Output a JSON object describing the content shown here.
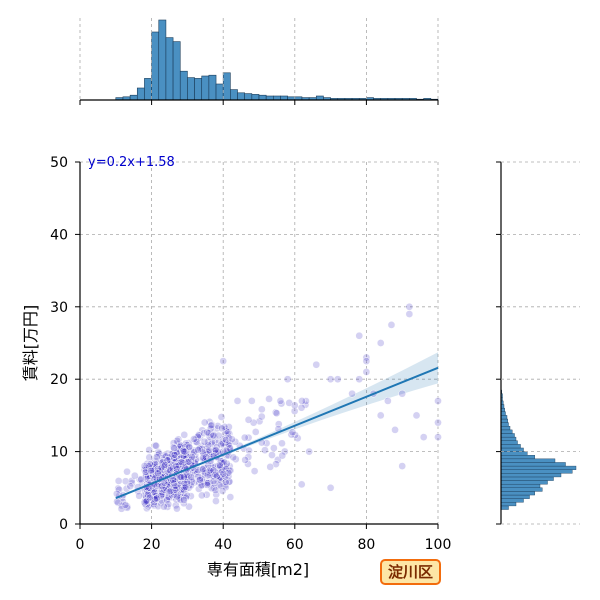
{
  "chart_data": {
    "type": "scatter",
    "title": "",
    "xlabel": "専有面積[m2]",
    "ylabel": "賃料[万円]",
    "xlim": [
      0,
      100
    ],
    "ylim": [
      0,
      50
    ],
    "x_ticks": [
      0,
      20,
      40,
      60,
      80,
      100
    ],
    "y_ticks": [
      0,
      10,
      20,
      30,
      40,
      50
    ],
    "grid": true,
    "equation": "y=0.2x+1.58",
    "regression": {
      "slope": 0.2,
      "intercept": 1.58,
      "x_range": [
        10,
        100
      ]
    },
    "point_color": "#3a2fc6",
    "line_color": "#1f77b4",
    "hist_color": "#4a90c2",
    "marginal_x_hist": {
      "bin_width": 2,
      "counts_relative": [
        {
          "x": 10,
          "h": 0.03
        },
        {
          "x": 12,
          "h": 0.04
        },
        {
          "x": 14,
          "h": 0.06
        },
        {
          "x": 16,
          "h": 0.15
        },
        {
          "x": 18,
          "h": 0.27
        },
        {
          "x": 20,
          "h": 0.85
        },
        {
          "x": 22,
          "h": 1.0
        },
        {
          "x": 24,
          "h": 0.78
        },
        {
          "x": 26,
          "h": 0.73
        },
        {
          "x": 28,
          "h": 0.36
        },
        {
          "x": 30,
          "h": 0.28
        },
        {
          "x": 32,
          "h": 0.27
        },
        {
          "x": 34,
          "h": 0.3
        },
        {
          "x": 36,
          "h": 0.31
        },
        {
          "x": 38,
          "h": 0.2
        },
        {
          "x": 40,
          "h": 0.34
        },
        {
          "x": 42,
          "h": 0.13
        },
        {
          "x": 44,
          "h": 0.09
        },
        {
          "x": 46,
          "h": 0.08
        },
        {
          "x": 48,
          "h": 0.07
        },
        {
          "x": 50,
          "h": 0.06
        },
        {
          "x": 52,
          "h": 0.05
        },
        {
          "x": 54,
          "h": 0.05
        },
        {
          "x": 56,
          "h": 0.05
        },
        {
          "x": 58,
          "h": 0.04
        },
        {
          "x": 60,
          "h": 0.04
        },
        {
          "x": 62,
          "h": 0.03
        },
        {
          "x": 64,
          "h": 0.03
        },
        {
          "x": 66,
          "h": 0.05
        },
        {
          "x": 68,
          "h": 0.03
        },
        {
          "x": 70,
          "h": 0.02
        },
        {
          "x": 72,
          "h": 0.02
        },
        {
          "x": 74,
          "h": 0.02
        },
        {
          "x": 76,
          "h": 0.02
        },
        {
          "x": 78,
          "h": 0.02
        },
        {
          "x": 80,
          "h": 0.03
        },
        {
          "x": 82,
          "h": 0.02
        },
        {
          "x": 84,
          "h": 0.02
        },
        {
          "x": 86,
          "h": 0.02
        },
        {
          "x": 88,
          "h": 0.02
        },
        {
          "x": 90,
          "h": 0.02
        },
        {
          "x": 92,
          "h": 0.02
        },
        {
          "x": 94,
          "h": 0.01
        },
        {
          "x": 96,
          "h": 0.02
        },
        {
          "x": 98,
          "h": 0.01
        }
      ]
    },
    "marginal_y_hist": {
      "bin_width": 0.5,
      "counts_relative": [
        {
          "y": 2.0,
          "w": 0.1
        },
        {
          "y": 2.5,
          "w": 0.2
        },
        {
          "y": 3.0,
          "w": 0.3
        },
        {
          "y": 3.5,
          "w": 0.38
        },
        {
          "y": 4.0,
          "w": 0.45
        },
        {
          "y": 4.5,
          "w": 0.55
        },
        {
          "y": 5.0,
          "w": 0.52
        },
        {
          "y": 5.5,
          "w": 0.62
        },
        {
          "y": 6.0,
          "w": 0.7
        },
        {
          "y": 6.5,
          "w": 0.8
        },
        {
          "y": 7.0,
          "w": 0.95
        },
        {
          "y": 7.5,
          "w": 1.0
        },
        {
          "y": 8.0,
          "w": 0.86
        },
        {
          "y": 8.5,
          "w": 0.72
        },
        {
          "y": 9.0,
          "w": 0.45
        },
        {
          "y": 9.5,
          "w": 0.35
        },
        {
          "y": 10.0,
          "w": 0.3
        },
        {
          "y": 10.5,
          "w": 0.26
        },
        {
          "y": 11.0,
          "w": 0.22
        },
        {
          "y": 11.5,
          "w": 0.2
        },
        {
          "y": 12.0,
          "w": 0.18
        },
        {
          "y": 12.5,
          "w": 0.15
        },
        {
          "y": 13.0,
          "w": 0.12
        },
        {
          "y": 13.5,
          "w": 0.1
        },
        {
          "y": 14.0,
          "w": 0.09
        },
        {
          "y": 14.5,
          "w": 0.08
        },
        {
          "y": 15.0,
          "w": 0.06
        },
        {
          "y": 15.5,
          "w": 0.05
        },
        {
          "y": 16.0,
          "w": 0.04
        },
        {
          "y": 16.5,
          "w": 0.03
        },
        {
          "y": 17.0,
          "w": 0.02
        },
        {
          "y": 17.5,
          "w": 0.02
        },
        {
          "y": 18.0,
          "w": 0.01
        }
      ]
    },
    "outlier_points": [
      [
        92,
        30
      ],
      [
        92,
        29
      ],
      [
        87,
        27.5
      ],
      [
        78,
        26
      ],
      [
        84,
        25
      ],
      [
        80,
        23
      ],
      [
        80,
        22.5
      ],
      [
        80,
        21
      ],
      [
        66,
        22
      ],
      [
        70,
        20
      ],
      [
        72,
        20
      ],
      [
        78,
        20
      ],
      [
        82,
        18
      ],
      [
        90,
        18
      ],
      [
        86,
        17
      ],
      [
        76,
        18
      ],
      [
        100,
        17
      ],
      [
        100,
        14
      ],
      [
        100,
        12
      ],
      [
        96,
        12
      ],
      [
        94,
        15
      ],
      [
        88,
        13
      ],
      [
        84,
        15
      ],
      [
        58,
        20
      ],
      [
        62,
        17
      ],
      [
        56,
        17
      ],
      [
        48,
        17
      ],
      [
        44,
        17
      ],
      [
        40,
        22.5
      ],
      [
        90,
        8
      ],
      [
        70,
        5
      ],
      [
        64,
        10
      ]
    ],
    "badge_label": "淀川区"
  }
}
